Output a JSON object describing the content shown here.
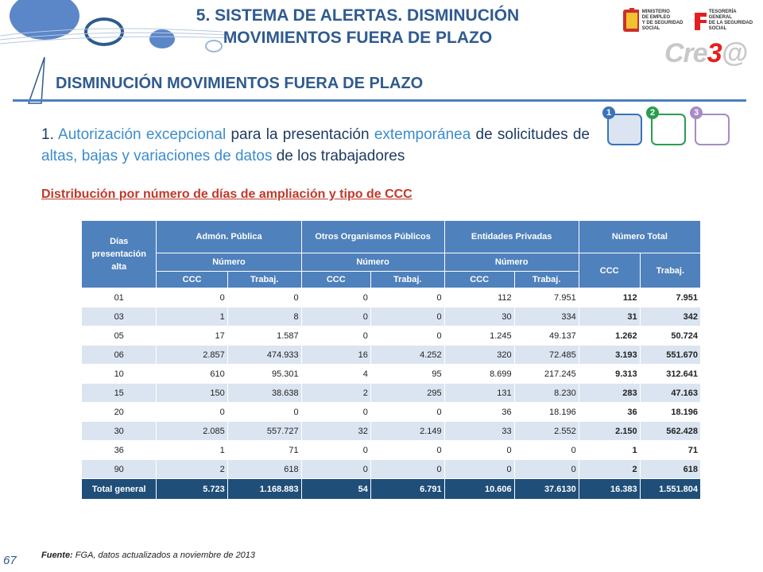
{
  "header": {
    "title_line1": "5. SISTEMA DE ALERTAS. DISMINUCIÓN",
    "title_line2": "MOVIMIENTOS FUERA DE PLAZO",
    "subtitle": "DISMINUCIÓN MOVIMIENTOS FUERA DE PLAZO",
    "logo_ministerio": [
      "MINISTERIO",
      "DE EMPLEO",
      "Y DE SEGURIDAD SOCIAL"
    ],
    "logo_tesoreria": [
      "TESORERÍA GENERAL",
      "DE LA SEGURIDAD SOCIAL"
    ],
    "brand_prefix": "Cre",
    "brand_mid": "3",
    "brand_suffix": "@"
  },
  "steps": [
    {
      "number": "1",
      "color": "#3b73b9",
      "fill": "#dbe5f1"
    },
    {
      "number": "2",
      "color": "#2a9d4f",
      "fill": "#ffffff"
    },
    {
      "number": "3",
      "color": "#a78bc7",
      "fill": "#ffffff"
    }
  ],
  "paragraph": {
    "p1": "1. ",
    "p2": "Autorización excepcional",
    "p3": " para la presentación ",
    "p4": "extemporánea",
    "p5": " de solicitudes de ",
    "p6": "altas, bajas y variaciones de datos",
    "p7": " de los trabajadores"
  },
  "distribution_title": "Distribución por número de días de ampliación y tipo de CCC",
  "table": {
    "h_dias": "Días presentación alta",
    "h_admon": "Admón. Pública",
    "h_otros": "Otros Organismos Públicos",
    "h_entidades": "Entidades Privadas",
    "h_total": "Número Total",
    "h_numero": "Número",
    "h_ccc": "CCC",
    "h_trabaj": "Trabaj.",
    "rows": [
      [
        "01",
        "0",
        "0",
        "0",
        "0",
        "112",
        "7.951",
        "112",
        "7.951"
      ],
      [
        "03",
        "1",
        "8",
        "0",
        "0",
        "30",
        "334",
        "31",
        "342"
      ],
      [
        "05",
        "17",
        "1.587",
        "0",
        "0",
        "1.245",
        "49.137",
        "1.262",
        "50.724"
      ],
      [
        "06",
        "2.857",
        "474.933",
        "16",
        "4.252",
        "320",
        "72.485",
        "3.193",
        "551.670"
      ],
      [
        "10",
        "610",
        "95.301",
        "4",
        "95",
        "8.699",
        "217.245",
        "9.313",
        "312.641"
      ],
      [
        "15",
        "150",
        "38.638",
        "2",
        "295",
        "131",
        "8.230",
        "283",
        "47.163"
      ],
      [
        "20",
        "0",
        "0",
        "0",
        "0",
        "36",
        "18.196",
        "36",
        "18.196"
      ],
      [
        "30",
        "2.085",
        "557.727",
        "32",
        "2.149",
        "33",
        "2.552",
        "2.150",
        "562.428"
      ],
      [
        "36",
        "1",
        "71",
        "0",
        "0",
        "0",
        "0",
        "1",
        "71"
      ],
      [
        "90",
        "2",
        "618",
        "0",
        "0",
        "0",
        "0",
        "2",
        "618"
      ]
    ],
    "total": [
      "Total general",
      "5.723",
      "1.168.883",
      "54",
      "6.791",
      "10.606",
      "37.6130",
      "16.383",
      "1.551.804"
    ]
  },
  "footer": {
    "page_number": "67",
    "source_label": "Fuente:",
    "source_text": " FGA, datos actualizados a noviembre de 2013"
  }
}
